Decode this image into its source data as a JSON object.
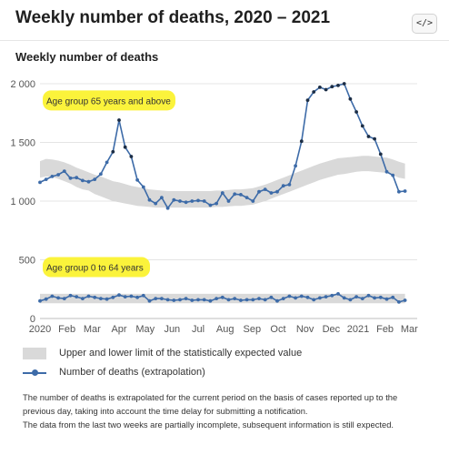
{
  "header": {
    "title": "Weekly number of deaths, 2020 – 2021",
    "embed_label": "</>"
  },
  "chart_data": {
    "type": "line",
    "title": "Weekly number of deaths",
    "xlabel": "",
    "ylabel": "",
    "x_unit": "weeks since 1 Jan 2020",
    "xlim": [
      0,
      62
    ],
    "ylim": [
      0,
      2000
    ],
    "yticks": [
      {
        "value": 0,
        "label": "0"
      },
      {
        "value": 500,
        "label": "500"
      },
      {
        "value": 1000,
        "label": "1 000"
      },
      {
        "value": 1500,
        "label": "1 500"
      },
      {
        "value": 2000,
        "label": "2 000"
      }
    ],
    "xticks": [
      {
        "value": 0,
        "label": "2020"
      },
      {
        "value": 4.43,
        "label": "Feb"
      },
      {
        "value": 8.57,
        "label": "Mar"
      },
      {
        "value": 13,
        "label": "Apr"
      },
      {
        "value": 17.29,
        "label": "May"
      },
      {
        "value": 21.71,
        "label": "Jun"
      },
      {
        "value": 26,
        "label": "Jul"
      },
      {
        "value": 30.43,
        "label": "Aug"
      },
      {
        "value": 34.86,
        "label": "Sep"
      },
      {
        "value": 39.14,
        "label": "Oct"
      },
      {
        "value": 43.57,
        "label": "Nov"
      },
      {
        "value": 47.86,
        "label": "Dec"
      },
      {
        "value": 52.29,
        "label": "2021"
      },
      {
        "value": 56.71,
        "label": "Feb"
      },
      {
        "value": 60.71,
        "label": "Mar"
      }
    ],
    "grid": "horizontal",
    "annotations": [
      "Age group 65 years and above",
      "Age group 0 to 64 years"
    ],
    "series": [
      {
        "name": "Age group 65 years and above",
        "color": "#3d6ba8",
        "values": [
          1160,
          1185,
          1210,
          1225,
          1255,
          1195,
          1200,
          1175,
          1165,
          1185,
          1230,
          1330,
          1420,
          1690,
          1460,
          1380,
          1180,
          1120,
          1010,
          980,
          1030,
          940,
          1010,
          1000,
          990,
          1000,
          1005,
          1000,
          965,
          980,
          1070,
          1000,
          1060,
          1055,
          1030,
          1000,
          1080,
          1100,
          1070,
          1080,
          1130,
          1140,
          1300,
          1510,
          1860,
          1930,
          1970,
          1950,
          1975,
          1985,
          2000,
          1870,
          1760,
          1640,
          1550,
          1530,
          1400,
          1250,
          1220,
          1080,
          1085
        ]
      },
      {
        "name": "Age group 0 to 64 years",
        "color": "#3d6ba8",
        "values": [
          150,
          165,
          190,
          175,
          170,
          195,
          185,
          170,
          190,
          180,
          170,
          165,
          180,
          200,
          185,
          190,
          180,
          195,
          150,
          170,
          170,
          160,
          155,
          160,
          170,
          155,
          160,
          160,
          150,
          170,
          180,
          160,
          170,
          155,
          160,
          160,
          170,
          160,
          180,
          150,
          170,
          190,
          175,
          190,
          180,
          160,
          175,
          185,
          195,
          210,
          175,
          160,
          185,
          170,
          195,
          175,
          180,
          165,
          180,
          140,
          155
        ]
      }
    ],
    "expected_bands": [
      {
        "name": "Upper and lower limit of the statistically expected value",
        "color": "#d9d9d9",
        "lower": [
          1200,
          1210,
          1205,
          1190,
          1170,
          1150,
          1120,
          1100,
          1090,
          1060,
          1040,
          1020,
          1000,
          990,
          980,
          970,
          960,
          955,
          950,
          945,
          945,
          945,
          945,
          945,
          945,
          945,
          945,
          945,
          945,
          950,
          950,
          955,
          960,
          960,
          965,
          970,
          985,
          1000,
          1020,
          1040,
          1060,
          1080,
          1100,
          1120,
          1140,
          1160,
          1180,
          1195,
          1210,
          1225,
          1230,
          1240,
          1250,
          1255,
          1255,
          1250,
          1245,
          1240,
          1220,
          1200,
          1190
        ],
        "upper": [
          1340,
          1360,
          1355,
          1345,
          1330,
          1310,
          1285,
          1265,
          1245,
          1225,
          1210,
          1190,
          1170,
          1160,
          1145,
          1130,
          1120,
          1110,
          1100,
          1095,
          1090,
          1085,
          1085,
          1085,
          1085,
          1085,
          1085,
          1085,
          1085,
          1090,
          1090,
          1095,
          1100,
          1100,
          1105,
          1110,
          1125,
          1140,
          1160,
          1180,
          1200,
          1220,
          1240,
          1260,
          1280,
          1300,
          1320,
          1335,
          1350,
          1365,
          1370,
          1375,
          1380,
          1385,
          1385,
          1380,
          1375,
          1370,
          1355,
          1335,
          1320
        ]
      },
      {
        "name": "Upper and lower limit of the statistically expected value",
        "color": "#d9d9d9",
        "lower": [
          130,
          130,
          130,
          130,
          130,
          130,
          130,
          130,
          130,
          130,
          130,
          130,
          130,
          130,
          130,
          130,
          130,
          130,
          130,
          130,
          130,
          130,
          130,
          130,
          130,
          130,
          130,
          130,
          130,
          130,
          130,
          130,
          130,
          130,
          130,
          130,
          130,
          130,
          130,
          130,
          130,
          130,
          130,
          130,
          130,
          130,
          130,
          130,
          130,
          130,
          130,
          130,
          130,
          130,
          130,
          130,
          130,
          130,
          130,
          130,
          130
        ],
        "upper": [
          210,
          210,
          210,
          210,
          210,
          210,
          210,
          210,
          210,
          210,
          210,
          210,
          210,
          210,
          210,
          210,
          210,
          210,
          210,
          210,
          210,
          210,
          210,
          210,
          210,
          210,
          210,
          210,
          210,
          210,
          210,
          210,
          210,
          210,
          210,
          210,
          210,
          210,
          210,
          210,
          210,
          210,
          210,
          210,
          210,
          210,
          210,
          210,
          210,
          210,
          210,
          210,
          210,
          210,
          210,
          210,
          210,
          210,
          210,
          210,
          210
        ]
      }
    ]
  },
  "legend": {
    "band_label": "Upper and lower limit of the statistically expected value",
    "line_label": "Number of deaths (extrapolation)",
    "band_color": "#d9d9d9",
    "line_color": "#3d6ba8"
  },
  "notes": {
    "line1": "The number of deaths is extrapolated for the current period on the basis of cases reported up to the previous day, taking into account the time delay for submitting a notification.",
    "line2": "The data from the last two weeks are partially incomplete, subsequent information is still expected."
  }
}
